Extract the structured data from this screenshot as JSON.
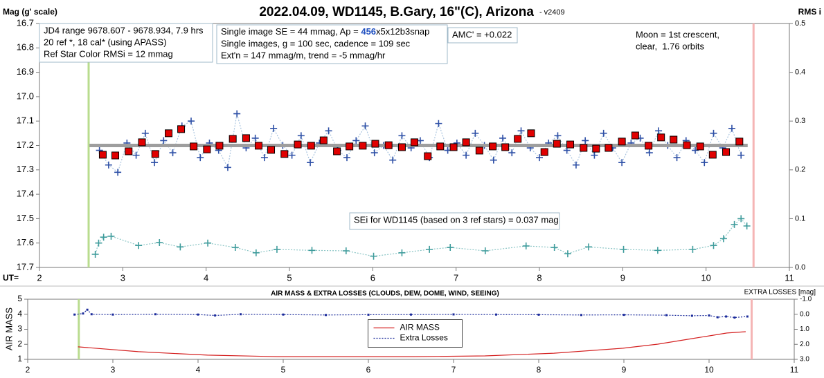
{
  "chart_data": [
    {
      "type": "scatter",
      "title": "2022.04.09, WD1145, B.Gary, 16\"(C), Arizona",
      "subtitle": "- v2409",
      "y_label": "Mag (g' scale)",
      "y2_label": "RMS i",
      "x_label": "UT=",
      "xlim": [
        2,
        11
      ],
      "xticks": [
        2,
        3,
        4,
        5,
        6,
        7,
        8,
        9,
        10,
        11
      ],
      "ylim": [
        16.7,
        17.7
      ],
      "y_inverted": true,
      "yticks": [
        16.7,
        16.8,
        16.9,
        {
          "value": 17,
          "label": "17.0"
        },
        17.1,
        17.2,
        17.3,
        17.4,
        17.5,
        17.6,
        17.7
      ],
      "y2lim": [
        0,
        0.5
      ],
      "y2ticks": [
        {
          "value": 0,
          "label": "0.0"
        },
        0.1,
        0.2,
        0.3,
        0.4,
        0.5
      ],
      "vlines": [
        {
          "x": 2.59,
          "color": "#b9dc8e"
        },
        {
          "x": 10.57,
          "color": "#f5b5b5"
        }
      ],
      "series": [
        {
          "color": "#2d4fa6",
          "line_color": "#a9c4df",
          "marker": "plus",
          "line": "dotted",
          "x": [
            2.72,
            2.83,
            2.94,
            3.05,
            3.16,
            3.27,
            3.38,
            3.49,
            3.6,
            3.71,
            3.82,
            3.93,
            4.04,
            4.15,
            4.26,
            4.37,
            4.48,
            4.59,
            4.7,
            4.81,
            4.92,
            5.03,
            5.14,
            5.25,
            5.36,
            5.47,
            5.58,
            5.69,
            5.8,
            5.91,
            6.02,
            6.13,
            6.24,
            6.35,
            6.46,
            6.57,
            6.68,
            6.79,
            6.9,
            7.01,
            7.12,
            7.23,
            7.34,
            7.45,
            7.56,
            7.67,
            7.78,
            7.89,
            8.0,
            8.11,
            8.22,
            8.33,
            8.44,
            8.55,
            8.66,
            8.77,
            8.88,
            8.99,
            9.1,
            9.21,
            9.32,
            9.43,
            9.54,
            9.65,
            9.76,
            9.87,
            9.98,
            10.09,
            10.2,
            10.31,
            10.42
          ],
          "values": [
            17.22,
            17.28,
            17.31,
            17.19,
            17.24,
            17.15,
            17.27,
            17.18,
            17.23,
            17.12,
            17.1,
            17.25,
            17.19,
            17.22,
            17.29,
            17.07,
            17.21,
            17.17,
            17.25,
            17.13,
            17.2,
            17.24,
            17.16,
            17.27,
            17.19,
            17.14,
            17.22,
            17.25,
            17.18,
            17.12,
            17.23,
            17.2,
            17.26,
            17.16,
            17.21,
            17.18,
            17.25,
            17.11,
            17.22,
            17.19,
            17.24,
            17.15,
            17.2,
            17.26,
            17.17,
            17.23,
            17.14,
            17.21,
            17.25,
            17.19,
            17.16,
            17.22,
            17.28,
            17.18,
            17.24,
            17.15,
            17.21,
            17.27,
            17.19,
            17.17,
            17.23,
            17.14,
            17.2,
            17.25,
            17.18,
            17.22,
            17.27,
            17.15,
            17.21,
            17.13,
            17.24
          ]
        },
        {
          "color": "#9e9e9e",
          "marker": "none",
          "line": "thick",
          "x": [
            2.6,
            10.5
          ],
          "values": [
            17.2,
            17.2
          ]
        },
        {
          "color": "#e00000",
          "marker": "square",
          "line": "none",
          "x": [
            2.76,
            2.91,
            3.07,
            3.23,
            3.39,
            3.55,
            3.7,
            3.85,
            4.01,
            4.16,
            4.32,
            4.48,
            4.63,
            4.78,
            4.94,
            5.1,
            5.26,
            5.41,
            5.57,
            5.72,
            5.88,
            6.03,
            6.19,
            6.35,
            6.5,
            6.66,
            6.81,
            6.97,
            7.12,
            7.28,
            7.44,
            7.59,
            7.74,
            7.9,
            8.06,
            8.21,
            8.37,
            8.53,
            8.68,
            8.83,
            8.99,
            9.15,
            9.31,
            9.46,
            9.61,
            9.77,
            9.93,
            10.08,
            10.24,
            10.4
          ],
          "values": [
            17.238,
            17.241,
            17.224,
            17.187,
            17.235,
            17.15,
            17.133,
            17.204,
            17.216,
            17.201,
            17.173,
            17.17,
            17.201,
            17.218,
            17.235,
            17.196,
            17.201,
            17.179,
            17.224,
            17.204,
            17.201,
            17.193,
            17.199,
            17.207,
            17.187,
            17.244,
            17.204,
            17.207,
            17.187,
            17.221,
            17.204,
            17.207,
            17.173,
            17.15,
            17.227,
            17.193,
            17.196,
            17.21,
            17.213,
            17.21,
            17.184,
            17.159,
            17.201,
            17.167,
            17.176,
            17.199,
            17.204,
            17.238,
            17.227,
            17.184
          ]
        },
        {
          "color": "#3f9c9c",
          "line_color": "#8cc6c6",
          "marker": "plus",
          "line": "dotted",
          "axis": "y2",
          "x": [
            2.67,
            2.71,
            2.77,
            2.86,
            3.19,
            3.44,
            3.69,
            4.02,
            4.35,
            4.6,
            4.85,
            5.27,
            5.68,
            6.01,
            6.35,
            6.68,
            6.93,
            7.35,
            7.84,
            8.18,
            8.34,
            8.59,
            9.01,
            9.42,
            9.84,
            10.09,
            10.21,
            10.34,
            10.42,
            10.49
          ],
          "values": [
            0.027,
            0.05,
            0.062,
            0.064,
            0.045,
            0.051,
            0.042,
            0.05,
            0.041,
            0.03,
            0.037,
            0.035,
            0.034,
            0.023,
            0.03,
            0.037,
            0.041,
            0.034,
            0.044,
            0.041,
            0.028,
            0.042,
            0.037,
            0.035,
            0.037,
            0.045,
            0.059,
            0.088,
            0.1,
            0.085
          ]
        }
      ],
      "annotations": [
        {
          "lines": [
            "JD4 range 9678.607 - 9678.934, 7.9 hrs",
            "20 ref *, 18 cal* (using APASS)",
            "Ref Star Color RMSi = 12 mmag"
          ]
        },
        {
          "lines": [
            [
              {
                "text": "Single image SE = 44 mmag, Ap = "
              },
              {
                "text": "456",
                "color": "#2050c0",
                "bold": true
              },
              {
                "text": "x5x12b3snap"
              }
            ],
            "Single images, g = 100 sec, cadence = 109 sec",
            "Ext'n = 147 mmag/m, trend = -5 mmag/hr"
          ]
        },
        {
          "lines": [
            "AMC' = +0.022"
          ]
        },
        {
          "lines": [
            "Moon = 1st crescent,",
            "clear,  1.76 orbits"
          ],
          "border": false
        },
        {
          "lines": [
            "SEi for WD1145 (based on 3 ref stars) = 0.037 mag"
          ]
        }
      ]
    },
    {
      "type": "line",
      "title": "AIR MASS & EXTRA LOSSES (CLOUDS, DEW, DOME, WIND, SEEING)",
      "y_label": "AIR MASS",
      "y2_label": "EXTRA LOSSES [mag]",
      "xlim": [
        2,
        11
      ],
      "xticks": [
        2,
        3,
        4,
        5,
        6,
        7,
        8,
        9,
        10,
        11
      ],
      "ylim": [
        1,
        5
      ],
      "yticks": [
        1,
        2,
        3,
        4,
        5
      ],
      "y2lim": [
        -1,
        3
      ],
      "y2_inverted": true,
      "y2ticks": [
        {
          "value": -1,
          "label": "-1.0"
        },
        {
          "value": 0,
          "label": "0.0"
        },
        {
          "value": 1,
          "label": "1.0"
        },
        {
          "value": 2,
          "label": "2.0"
        },
        {
          "value": 3,
          "label": "3.0"
        }
      ],
      "vlines": [
        {
          "x": 2.6,
          "color": "#b9dc8e"
        },
        {
          "x": 10.5,
          "color": "#f5b5b5"
        }
      ],
      "legend": "center",
      "series": [
        {
          "name": "AIR MASS",
          "color": "#d42020",
          "marker": "none",
          "line": "solid",
          "x": [
            2.59,
            3.3,
            4.11,
            4.93,
            5.74,
            6.55,
            7.37,
            8.18,
            8.99,
            9.4,
            9.8,
            10.21,
            10.43
          ],
          "values": [
            1.83,
            1.51,
            1.28,
            1.18,
            1.18,
            1.18,
            1.23,
            1.41,
            1.74,
            2.01,
            2.38,
            2.75,
            2.84
          ]
        },
        {
          "name": "Extra Losses",
          "color": "#1a2a9a",
          "marker": "dot",
          "line": "dotted",
          "axis": "y2",
          "x": [
            2.55,
            2.65,
            2.7,
            2.75,
            3.0,
            3.5,
            4.0,
            4.2,
            4.5,
            5.0,
            5.5,
            6.0,
            6.5,
            7.0,
            7.5,
            8.0,
            8.5,
            9.0,
            9.5,
            9.8,
            10.0,
            10.1,
            10.2,
            10.3,
            10.45
          ],
          "values": [
            0.02,
            -0.05,
            -0.3,
            0.0,
            0.02,
            0.0,
            0.02,
            0.08,
            0.0,
            0.02,
            0.05,
            0.03,
            0.02,
            0.01,
            0.02,
            0.03,
            0.05,
            0.04,
            0.06,
            0.1,
            0.08,
            0.2,
            0.15,
            0.22,
            0.15
          ]
        }
      ]
    }
  ]
}
